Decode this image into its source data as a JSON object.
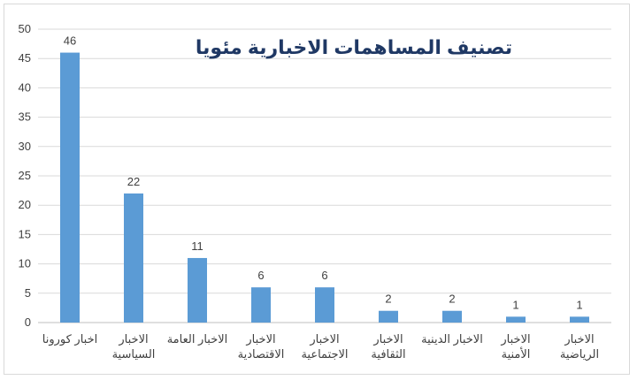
{
  "chart_data": {
    "type": "bar",
    "title": "تصنيف المساهمات الاخبارية مئويا",
    "categories": [
      [
        "اخبار كورونا"
      ],
      [
        "الاخبار",
        "السياسية"
      ],
      [
        "الاخبار العامة"
      ],
      [
        "الاخبار",
        "الاقتصادية"
      ],
      [
        "الاخبار",
        "الاجتماعية"
      ],
      [
        "الاخبار",
        "الثقافية"
      ],
      [
        "الاخبار الدينية"
      ],
      [
        "الاخبار",
        "الأمنية"
      ],
      [
        "الاخبار",
        "الرياضية"
      ]
    ],
    "values": [
      46,
      22,
      11,
      6,
      6,
      2,
      2,
      1,
      1
    ],
    "ylim": [
      0,
      50
    ],
    "yticks": [
      0,
      5,
      10,
      15,
      20,
      25,
      30,
      35,
      40,
      45,
      50
    ],
    "xlabel": "",
    "ylabel": "",
    "grid": true,
    "data_labels": true,
    "bar_color": "#5b9bd5",
    "title_color": "#1f3864"
  }
}
